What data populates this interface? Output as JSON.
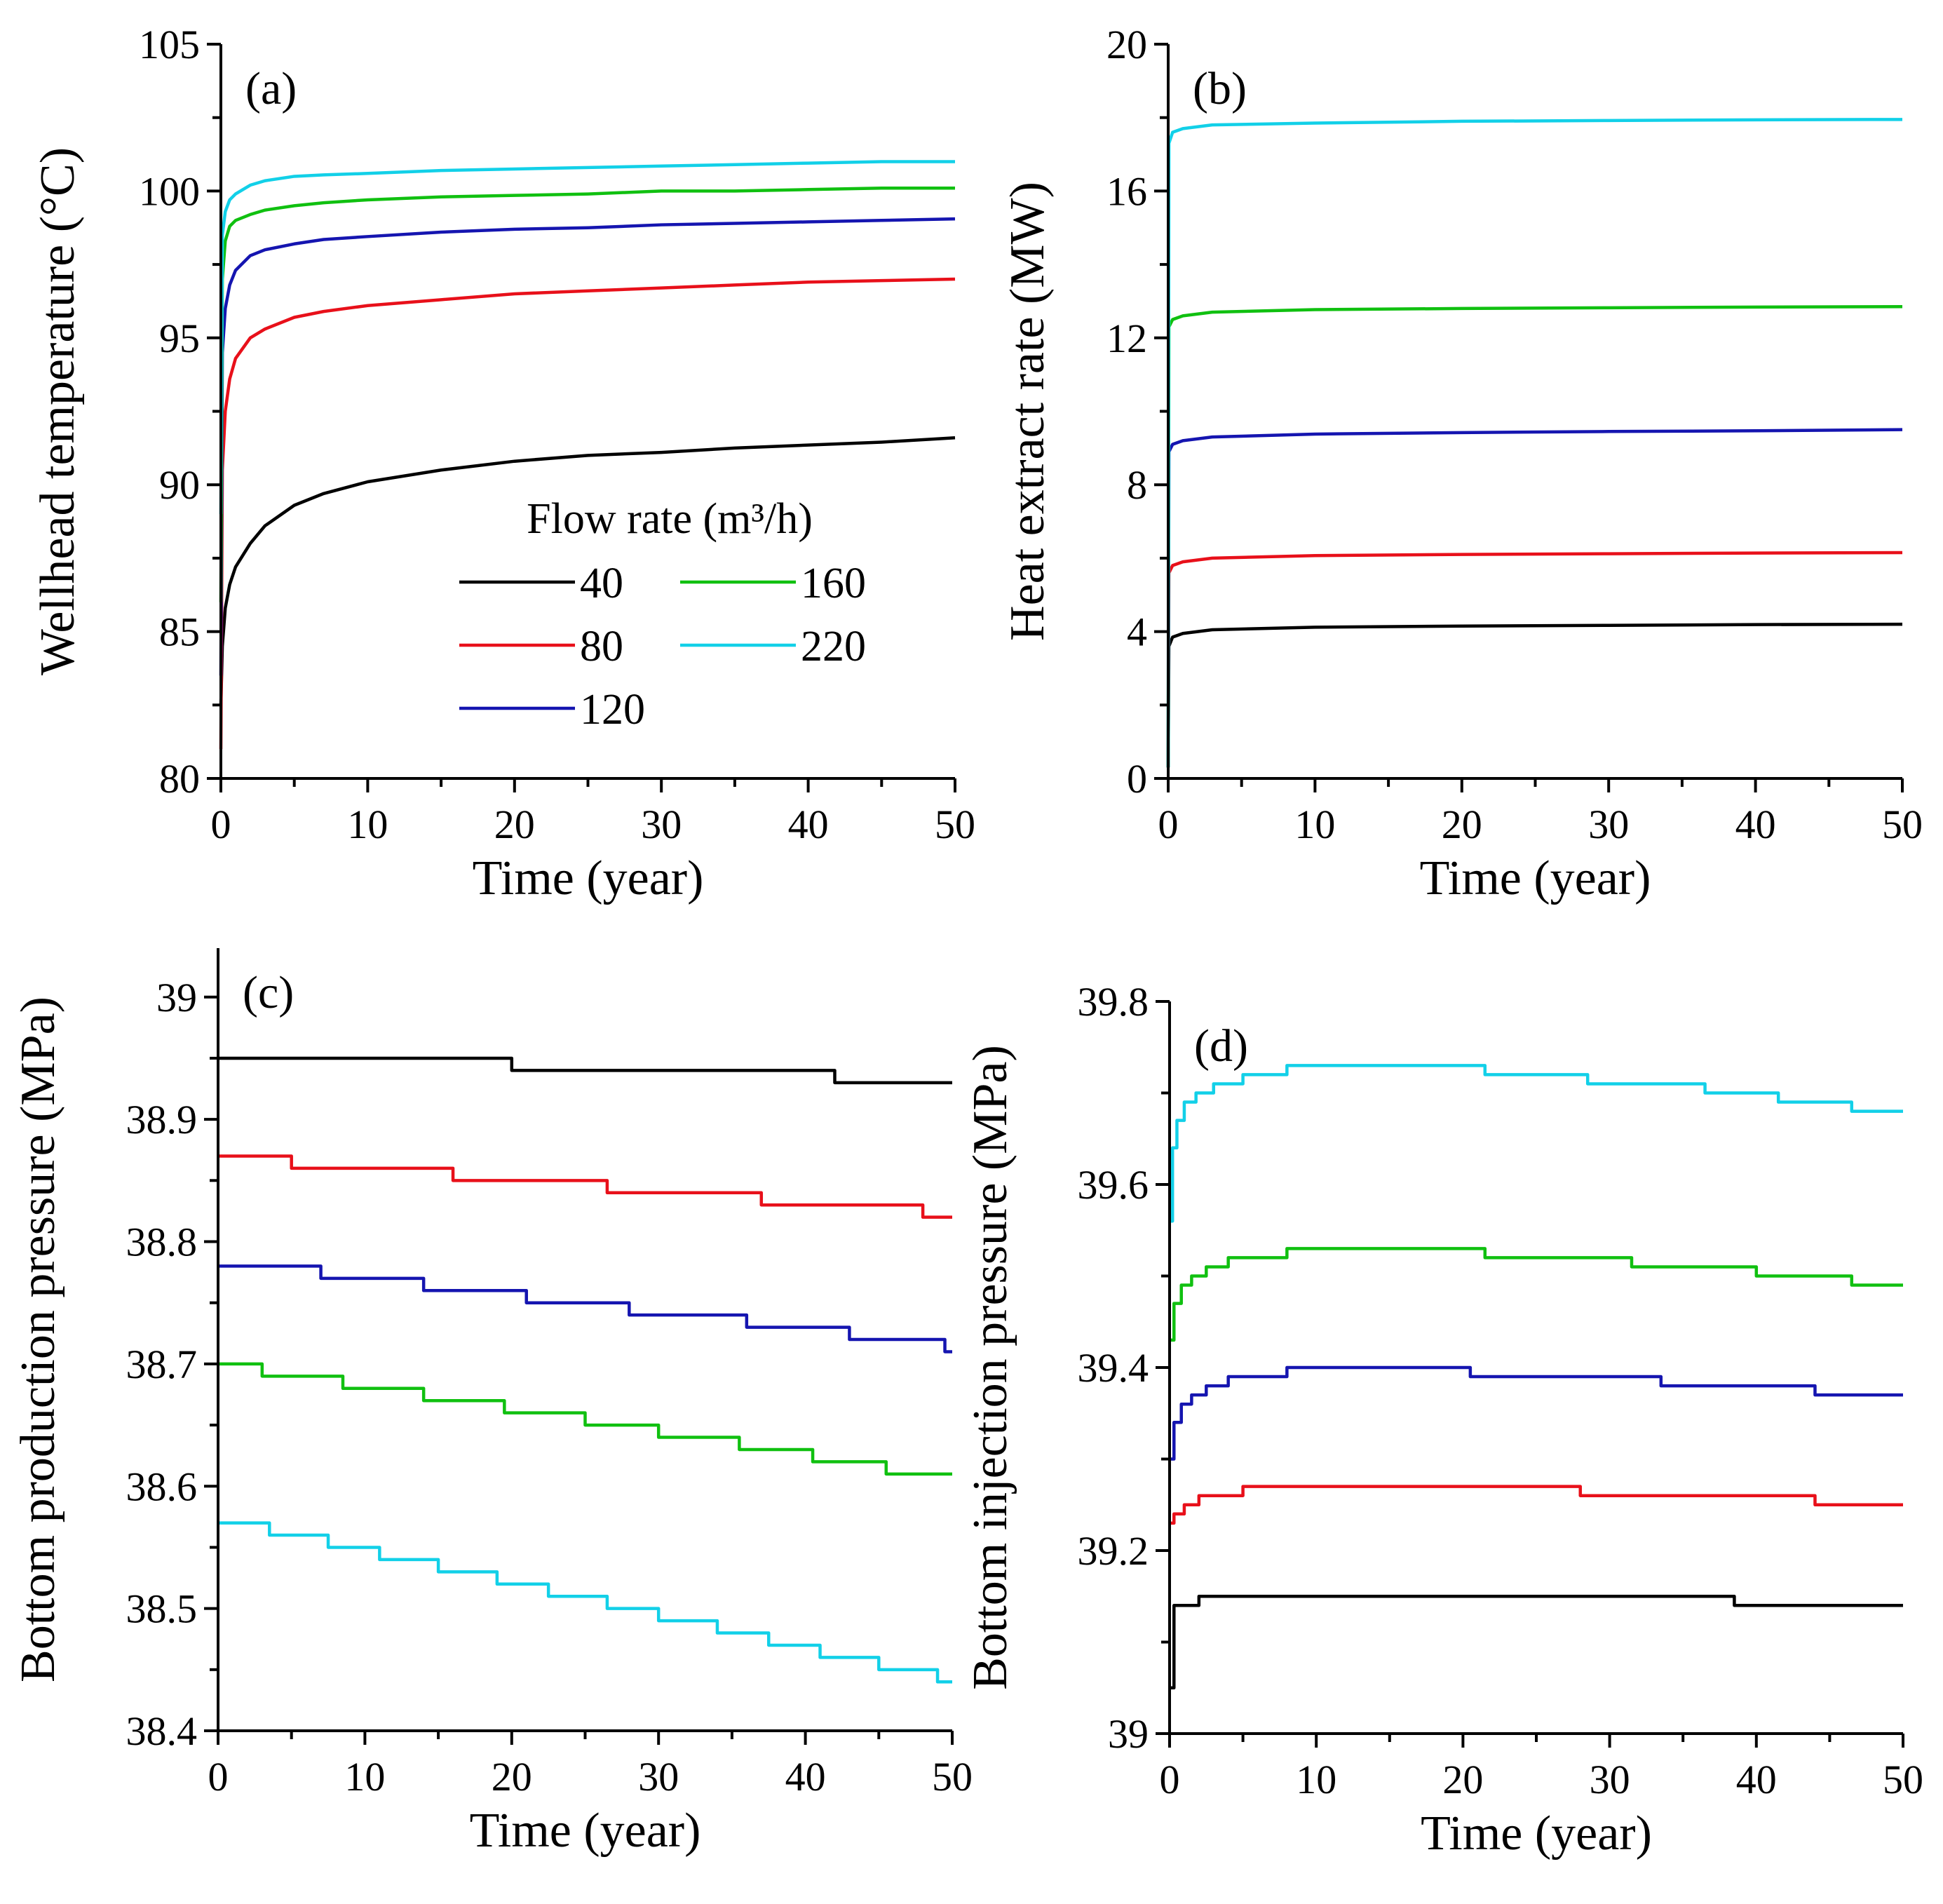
{
  "legend": {
    "title": "Flow rate (m³/h)",
    "entries": [
      "40",
      "80",
      "120",
      "160",
      "220"
    ]
  },
  "chart_data": [
    {
      "id": "a",
      "panel_label": "(a)",
      "type": "line",
      "xlabel": "Time (year)",
      "ylabel": "Wellhead temperature (°C)",
      "xlim": [
        0,
        50
      ],
      "ylim": [
        80,
        105
      ],
      "xticks": [
        "0",
        "10",
        "20",
        "30",
        "40",
        "50"
      ],
      "yticks": [
        "80",
        "85",
        "90",
        "95",
        "100",
        "105"
      ],
      "grid": false,
      "legend_position": "lower-right",
      "series": [
        {
          "name": "40",
          "color": "#000000",
          "x": [
            0,
            0.1,
            0.3,
            0.6,
            1,
            2,
            3,
            5,
            7,
            10,
            15,
            20,
            25,
            30,
            35,
            40,
            45,
            50
          ],
          "y": [
            82.5,
            84.5,
            85.8,
            86.6,
            87.2,
            88.0,
            88.6,
            89.3,
            89.7,
            90.1,
            90.5,
            90.8,
            91.0,
            91.1,
            91.25,
            91.35,
            91.45,
            91.6
          ]
        },
        {
          "name": "80",
          "color": "#e8101a",
          "x": [
            0,
            0.1,
            0.3,
            0.6,
            1,
            2,
            3,
            5,
            7,
            10,
            15,
            20,
            25,
            30,
            35,
            40,
            45,
            50
          ],
          "y": [
            81,
            90.5,
            92.5,
            93.6,
            94.3,
            95.0,
            95.3,
            95.7,
            95.9,
            96.1,
            96.3,
            96.5,
            96.6,
            96.7,
            96.8,
            96.9,
            96.95,
            97.0
          ]
        },
        {
          "name": "120",
          "color": "#1515b0",
          "x": [
            0,
            0.1,
            0.3,
            0.6,
            1,
            2,
            3,
            5,
            7,
            10,
            15,
            20,
            25,
            30,
            35,
            40,
            45,
            50
          ],
          "y": [
            83.5,
            94.5,
            96.0,
            96.8,
            97.3,
            97.8,
            98.0,
            98.2,
            98.35,
            98.45,
            98.6,
            98.7,
            98.75,
            98.85,
            98.9,
            98.95,
            99.0,
            99.05
          ]
        },
        {
          "name": "160",
          "color": "#10c010",
          "x": [
            0,
            0.1,
            0.3,
            0.6,
            1,
            2,
            3,
            5,
            7,
            10,
            15,
            20,
            25,
            30,
            35,
            40,
            45,
            50
          ],
          "y": [
            86,
            97.0,
            98.3,
            98.8,
            99.0,
            99.2,
            99.35,
            99.5,
            99.6,
            99.7,
            99.8,
            99.85,
            99.9,
            100.0,
            100.0,
            100.05,
            100.1,
            100.1
          ]
        },
        {
          "name": "220",
          "color": "#12d0e8",
          "x": [
            0,
            0.1,
            0.3,
            0.6,
            1,
            2,
            3,
            5,
            7,
            10,
            15,
            20,
            25,
            30,
            35,
            40,
            45,
            50
          ],
          "y": [
            89,
            98.5,
            99.3,
            99.7,
            99.9,
            100.2,
            100.35,
            100.5,
            100.55,
            100.6,
            100.7,
            100.75,
            100.8,
            100.85,
            100.9,
            100.95,
            101.0,
            101.0
          ]
        }
      ]
    },
    {
      "id": "b",
      "panel_label": "(b)",
      "type": "line",
      "xlabel": "Time (year)",
      "ylabel": "Heat extract rate (MW)",
      "xlim": [
        0,
        50
      ],
      "ylim": [
        0,
        20
      ],
      "xticks": [
        "0",
        "10",
        "20",
        "30",
        "40",
        "50"
      ],
      "yticks": [
        "0",
        "4",
        "8",
        "12",
        "16",
        "20"
      ],
      "grid": false,
      "series": [
        {
          "name": "40",
          "color": "#000000",
          "x": [
            0,
            0.05,
            0.3,
            1,
            3,
            10,
            20,
            30,
            40,
            50
          ],
          "y": [
            0.3,
            3.6,
            3.85,
            3.95,
            4.05,
            4.12,
            4.15,
            4.17,
            4.19,
            4.2
          ]
        },
        {
          "name": "80",
          "color": "#e8101a",
          "x": [
            0,
            0.05,
            0.3,
            1,
            3,
            10,
            20,
            30,
            40,
            50
          ],
          "y": [
            0.3,
            5.6,
            5.8,
            5.9,
            6.0,
            6.07,
            6.1,
            6.12,
            6.14,
            6.15
          ]
        },
        {
          "name": "120",
          "color": "#1515b0",
          "x": [
            0,
            0.05,
            0.3,
            1,
            3,
            10,
            20,
            30,
            40,
            50
          ],
          "y": [
            0.3,
            8.9,
            9.1,
            9.2,
            9.3,
            9.38,
            9.42,
            9.45,
            9.47,
            9.5
          ]
        },
        {
          "name": "160",
          "color": "#10c010",
          "x": [
            0,
            0.05,
            0.3,
            1,
            3,
            10,
            20,
            30,
            40,
            50
          ],
          "y": [
            0.3,
            12.3,
            12.5,
            12.6,
            12.7,
            12.77,
            12.8,
            12.82,
            12.84,
            12.85
          ]
        },
        {
          "name": "220",
          "color": "#12d0e8",
          "x": [
            0,
            0.05,
            0.3,
            1,
            3,
            10,
            20,
            30,
            40,
            50
          ],
          "y": [
            0.3,
            17.3,
            17.6,
            17.7,
            17.8,
            17.85,
            17.9,
            17.92,
            17.94,
            17.95
          ]
        }
      ]
    },
    {
      "id": "c",
      "panel_label": "(c)",
      "type": "line",
      "xlabel": "Time (year)",
      "ylabel": "Bottom production pressure (MPa)",
      "xlim": [
        0,
        50
      ],
      "ylim": [
        38.4,
        39.04
      ],
      "xticks": [
        "0",
        "10",
        "20",
        "30",
        "40",
        "50"
      ],
      "yticks": [
        "38.4",
        "38.5",
        "38.6",
        "38.7",
        "38.8",
        "38.9",
        "39"
      ],
      "grid": false,
      "series": [
        {
          "name": "40",
          "color": "#000000",
          "step": true,
          "x": [
            0,
            20,
            42
          ],
          "y": [
            38.95,
            38.94,
            38.93
          ]
        },
        {
          "name": "80",
          "color": "#e8101a",
          "step": true,
          "x": [
            0,
            5,
            16,
            26.5,
            37,
            48
          ],
          "y": [
            38.87,
            38.86,
            38.85,
            38.84,
            38.83,
            38.82
          ]
        },
        {
          "name": "120",
          "color": "#1515b0",
          "step": true,
          "x": [
            0,
            7,
            14,
            21,
            28,
            36,
            43,
            49.5
          ],
          "y": [
            38.78,
            38.77,
            38.76,
            38.75,
            38.74,
            38.73,
            38.72,
            38.71
          ]
        },
        {
          "name": "160",
          "color": "#10c010",
          "step": true,
          "x": [
            0,
            3,
            8.5,
            14,
            19.5,
            25,
            30,
            35.5,
            40.5,
            45.5
          ],
          "y": [
            38.7,
            38.69,
            38.68,
            38.67,
            38.66,
            38.65,
            38.64,
            38.63,
            38.62,
            38.61
          ]
        },
        {
          "name": "220",
          "color": "#12d0e8",
          "step": true,
          "x": [
            0,
            3.5,
            7.5,
            11,
            15,
            19,
            22.5,
            26.5,
            30,
            34,
            37.5,
            41,
            45,
            49
          ],
          "y": [
            38.57,
            38.56,
            38.55,
            38.54,
            38.53,
            38.52,
            38.51,
            38.5,
            38.49,
            38.48,
            38.47,
            38.46,
            38.45,
            38.44
          ]
        }
      ]
    },
    {
      "id": "d",
      "panel_label": "(d)",
      "type": "line",
      "xlabel": "Time (year)",
      "ylabel": "Bottom injection pressure (MPa)",
      "xlim": [
        0,
        50
      ],
      "ylim": [
        39.0,
        39.8
      ],
      "xticks": [
        "0",
        "10",
        "20",
        "30",
        "40",
        "50"
      ],
      "yticks": [
        "39",
        "39.2",
        "39.4",
        "39.6",
        "39.8"
      ],
      "grid": false,
      "series": [
        {
          "name": "40",
          "color": "#000000",
          "step": true,
          "x": [
            0,
            0.3,
            2,
            38.5
          ],
          "y": [
            39.05,
            39.14,
            39.15,
            39.14
          ]
        },
        {
          "name": "80",
          "color": "#e8101a",
          "step": true,
          "x": [
            0,
            0.3,
            1,
            2,
            5,
            28,
            44
          ],
          "y": [
            39.23,
            39.24,
            39.25,
            39.26,
            39.27,
            39.26,
            39.25
          ]
        },
        {
          "name": "120",
          "color": "#1515b0",
          "step": true,
          "x": [
            0,
            0.3,
            0.8,
            1.5,
            2.5,
            4,
            8,
            20.5,
            33.5,
            44
          ],
          "y": [
            39.3,
            39.34,
            39.36,
            39.37,
            39.38,
            39.39,
            39.4,
            39.39,
            39.38,
            39.37
          ]
        },
        {
          "name": "160",
          "color": "#10c010",
          "step": true,
          "x": [
            0,
            0.3,
            0.8,
            1.5,
            2.5,
            4,
            8,
            21.5,
            31.5,
            40,
            46.5
          ],
          "y": [
            39.43,
            39.47,
            39.49,
            39.5,
            39.51,
            39.52,
            39.53,
            39.52,
            39.51,
            39.5,
            39.49
          ]
        },
        {
          "name": "220",
          "color": "#12d0e8",
          "step": true,
          "x": [
            0,
            0.2,
            0.5,
            1,
            1.8,
            3,
            5,
            8,
            21.5,
            28.5,
            36.5,
            41.5,
            46.5
          ],
          "y": [
            39.56,
            39.64,
            39.67,
            39.69,
            39.7,
            39.71,
            39.72,
            39.73,
            39.72,
            39.71,
            39.7,
            39.69,
            39.68
          ]
        }
      ]
    }
  ]
}
